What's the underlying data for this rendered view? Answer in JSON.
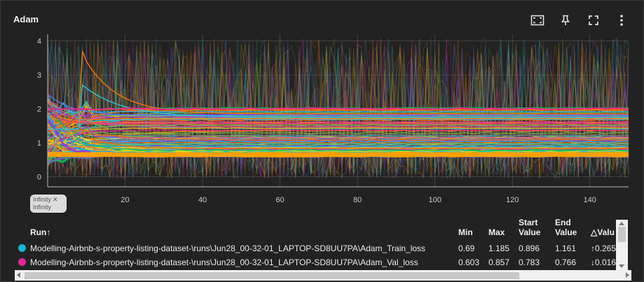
{
  "card": {
    "title": "Adam"
  },
  "toolbar": {
    "icons": [
      "fit-domain-icon",
      "pin-icon",
      "fullscreen-icon",
      "more-vert-icon"
    ]
  },
  "chart_data": {
    "type": "line",
    "title": "Adam",
    "xlabel": "",
    "ylabel": "",
    "x_ticks": [
      20,
      40,
      60,
      80,
      100,
      120,
      140
    ],
    "y_ticks": [
      0,
      1,
      2,
      3,
      4
    ],
    "xlim": [
      0,
      150
    ],
    "ylim": [
      -0.3,
      4.2
    ],
    "grid": true,
    "range_selector": {
      "line1": "Infinity",
      "line2": "Infinity"
    },
    "series_bundle": {
      "description_count": 180,
      "converged_band": [
        0.6,
        2.05
      ],
      "noise_band": [
        -0.1,
        4.1
      ],
      "colors": [
        "#12b5cb",
        "#e52592",
        "#f9ab00",
        "#9334e6",
        "#7cb342",
        "#e8710a",
        "#4285f4",
        "#00c853",
        "#ff6d00",
        "#ab47bc",
        "#26c6da",
        "#ffd600",
        "#ec407a",
        "#66bb6a",
        "#ff9100",
        "#5c6bc0",
        "#29b6f6",
        "#d4e157",
        "#8d6e63",
        "#78909c"
      ]
    }
  },
  "table": {
    "headers": {
      "run": "Run",
      "sort_arrow": "↑",
      "min": "Min",
      "max": "Max",
      "start_value_1": "Start",
      "start_value_2": "Value",
      "end_value_1": "End",
      "end_value_2": "Value",
      "delta_value": "△Valu"
    },
    "rows": [
      {
        "color": "#12b5cb",
        "run": "Modelling-Airbnb-s-property-listing-dataset-\\runs\\Jun28_00-32-01_LAPTOP-SD8UU7PA\\Adam_Train_loss",
        "min": "0.69",
        "max": "1.185",
        "start": "0.896",
        "end": "1.161",
        "delta": "↑0.265"
      },
      {
        "color": "#e52592",
        "run": "Modelling-Airbnb-s-property-listing-dataset-\\runs\\Jun28_00-32-01_LAPTOP-SD8UU7PA\\Adam_Val_loss",
        "min": "0.603",
        "max": "0.857",
        "start": "0.783",
        "end": "0.766",
        "delta": "↓0.016"
      }
    ]
  }
}
